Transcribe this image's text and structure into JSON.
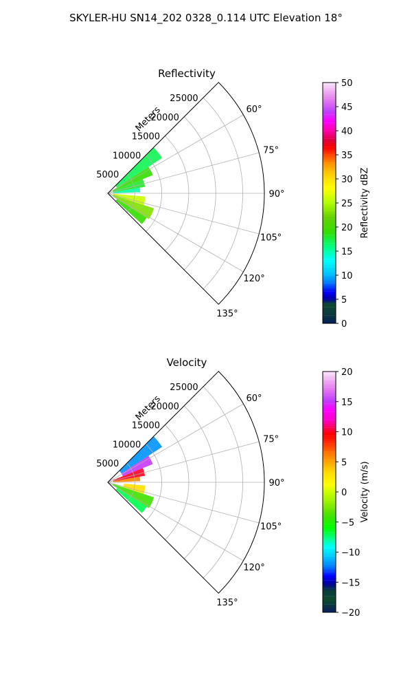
{
  "figure": {
    "suptitle": "SKYLER-HU  SN14_202  0328_0.114 UTC Elevation 18°"
  },
  "chart_data": [
    {
      "type": "heatmap",
      "projection": "polar-sector",
      "title": "Reflectivity",
      "range_label": "Meters",
      "range_ticks": [
        5000,
        10000,
        15000,
        20000,
        25000
      ],
      "range_tick_labels": [
        "5000",
        "10000",
        "15000",
        "20000",
        "25000"
      ],
      "rmax": 29000,
      "azimuth_range_deg": [
        45,
        135
      ],
      "azimuth_ticks_deg": [
        60,
        75,
        90,
        105,
        120,
        135
      ],
      "azimuth_tick_labels": [
        "60°",
        "75°",
        "90°",
        "105°",
        "120°",
        "135°"
      ],
      "grid": true,
      "colorbar": {
        "label": "Reflectivity dBZ",
        "min": 0,
        "max": 50,
        "ticks": [
          0,
          5,
          10,
          15,
          20,
          25,
          30,
          35,
          40,
          45,
          50
        ],
        "tick_labels": [
          "0",
          "5",
          "10",
          "15",
          "20",
          "25",
          "30",
          "35",
          "40",
          "45",
          "50"
        ],
        "stops": [
          [
            0,
            "#081d58"
          ],
          [
            0.04,
            "#0b3a3a"
          ],
          [
            0.08,
            "#0c4a30"
          ],
          [
            0.1,
            "#0000a0"
          ],
          [
            0.13,
            "#0000ff"
          ],
          [
            0.17,
            "#0080ff"
          ],
          [
            0.21,
            "#00c8ff"
          ],
          [
            0.26,
            "#00ffff"
          ],
          [
            0.32,
            "#00ff80"
          ],
          [
            0.38,
            "#33dd00"
          ],
          [
            0.44,
            "#66d000"
          ],
          [
            0.5,
            "#b0ff00"
          ],
          [
            0.56,
            "#ffff00"
          ],
          [
            0.62,
            "#ffcc00"
          ],
          [
            0.66,
            "#ff9900"
          ],
          [
            0.7,
            "#ff4400"
          ],
          [
            0.73,
            "#ff0000"
          ],
          [
            0.76,
            "#e0003c"
          ],
          [
            0.8,
            "#ff00aa"
          ],
          [
            0.84,
            "#ff00ff"
          ],
          [
            0.88,
            "#c040ff"
          ],
          [
            0.92,
            "#e070f0"
          ],
          [
            0.96,
            "#f0a8f0"
          ],
          [
            1,
            "#fbe8fb"
          ]
        ]
      },
      "echo_regions": [
        {
          "az": [
            45,
            57
          ],
          "r": [
            2000,
            12000
          ],
          "value": 17
        },
        {
          "az": [
            57,
            68
          ],
          "r": [
            1000,
            9000
          ],
          "value": 19
        },
        {
          "az": [
            68,
            80
          ],
          "r": [
            1000,
            7000
          ],
          "value": 18
        },
        {
          "az": [
            80,
            88
          ],
          "r": [
            1000,
            6000
          ],
          "value": 15
        },
        {
          "az": [
            95,
            108
          ],
          "r": [
            1000,
            7000
          ],
          "value": 26
        },
        {
          "az": [
            108,
            122
          ],
          "r": [
            1000,
            9000
          ],
          "value": 23
        },
        {
          "az": [
            122,
            132
          ],
          "r": [
            2000,
            8500
          ],
          "value": 19
        }
      ]
    },
    {
      "type": "heatmap",
      "projection": "polar-sector",
      "title": "Velocity",
      "range_label": "Meters",
      "range_ticks": [
        5000,
        10000,
        15000,
        20000,
        25000
      ],
      "range_tick_labels": [
        "5000",
        "10000",
        "15000",
        "20000",
        "25000"
      ],
      "rmax": 29000,
      "azimuth_range_deg": [
        45,
        135
      ],
      "azimuth_ticks_deg": [
        60,
        75,
        90,
        105,
        120,
        135
      ],
      "azimuth_tick_labels": [
        "60°",
        "75°",
        "90°",
        "105°",
        "120°",
        "135°"
      ],
      "grid": true,
      "colorbar": {
        "label": "Velocity (m/s)",
        "min": -20,
        "max": 20,
        "ticks": [
          -20,
          -15,
          -10,
          -5,
          0,
          5,
          10,
          15,
          20
        ],
        "tick_labels": [
          "−20",
          "−15",
          "−10",
          "−5",
          "0",
          "5",
          "10",
          "15",
          "20"
        ],
        "stops": [
          [
            0,
            "#081d58"
          ],
          [
            0.05,
            "#0c4a30"
          ],
          [
            0.09,
            "#0a3a3a"
          ],
          [
            0.12,
            "#0000a0"
          ],
          [
            0.15,
            "#0000ff"
          ],
          [
            0.19,
            "#0080ff"
          ],
          [
            0.23,
            "#00c8ff"
          ],
          [
            0.27,
            "#00ffff"
          ],
          [
            0.31,
            "#00ff80"
          ],
          [
            0.35,
            "#00ff00"
          ],
          [
            0.4,
            "#40e000"
          ],
          [
            0.45,
            "#90ee00"
          ],
          [
            0.5,
            "#ccff00"
          ],
          [
            0.53,
            "#ffff00"
          ],
          [
            0.58,
            "#ffdd00"
          ],
          [
            0.62,
            "#ffaa00"
          ],
          [
            0.66,
            "#ff7700"
          ],
          [
            0.7,
            "#ff3300"
          ],
          [
            0.74,
            "#ff0000"
          ],
          [
            0.77,
            "#ff0066"
          ],
          [
            0.8,
            "#ff00cc"
          ],
          [
            0.84,
            "#ff00ff"
          ],
          [
            0.88,
            "#c040ff"
          ],
          [
            0.92,
            "#e070f0"
          ],
          [
            0.96,
            "#f0a8f0"
          ],
          [
            1,
            "#fbe8fb"
          ]
        ]
      },
      "echo_regions": [
        {
          "az": [
            45,
            57
          ],
          "r": [
            3000,
            12000
          ],
          "value": -12
        },
        {
          "az": [
            57,
            68
          ],
          "r": [
            3000,
            9000
          ],
          "value": 15
        },
        {
          "az": [
            68,
            80
          ],
          "r": [
            1000,
            7000
          ],
          "value": 10
        },
        {
          "az": [
            80,
            88
          ],
          "r": [
            1000,
            6000
          ],
          "value": 6
        },
        {
          "az": [
            95,
            108
          ],
          "r": [
            3000,
            7000
          ],
          "value": 3
        },
        {
          "az": [
            108,
            122
          ],
          "r": [
            1000,
            9000
          ],
          "value": -4
        },
        {
          "az": [
            122,
            132
          ],
          "r": [
            2000,
            8500
          ],
          "value": -7
        }
      ]
    }
  ]
}
